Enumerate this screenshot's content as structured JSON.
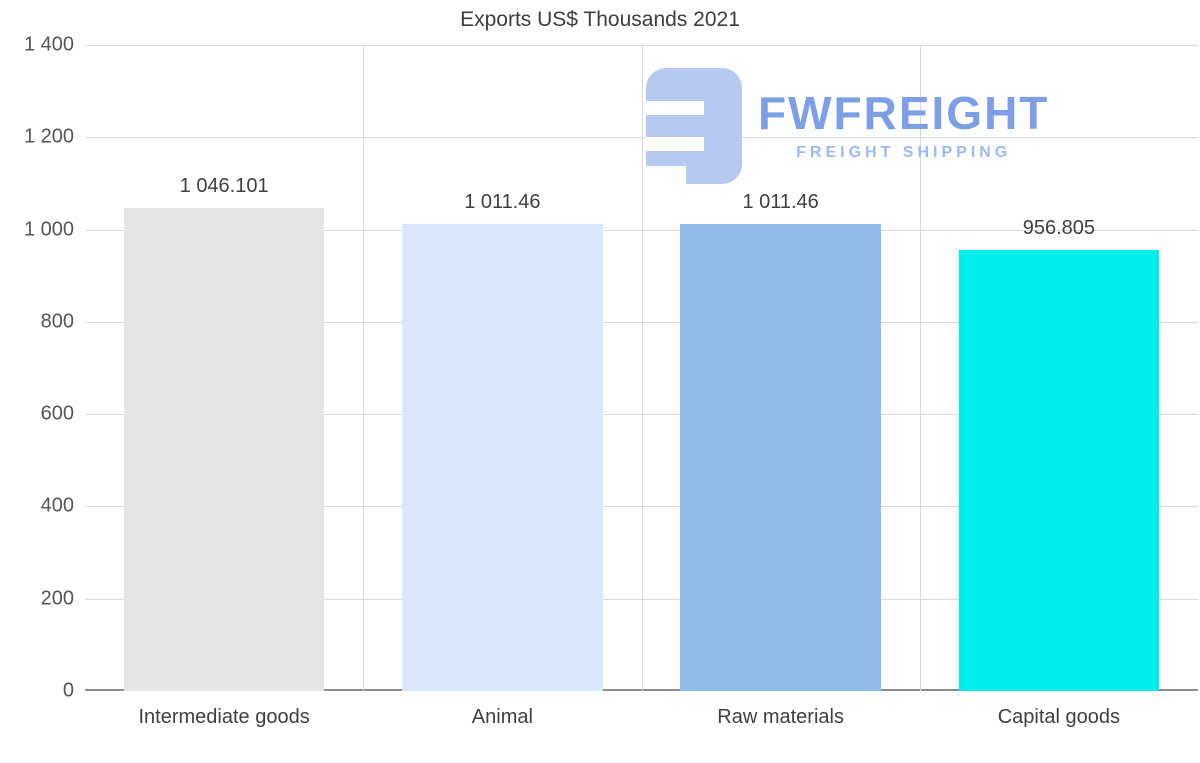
{
  "title": "Exports US$ Thousands 2021",
  "watermark": {
    "brand": "FWFREIGHT",
    "tagline": "FREIGHT SHIPPING",
    "brand_color": "#7d9fe6",
    "tagline_color": "#9cb9f0",
    "icon_color": "#b5c9f1"
  },
  "chart_data": {
    "type": "bar",
    "title": "Exports US$ Thousands 2021",
    "categories": [
      "Intermediate goods",
      "Animal",
      "Raw materials",
      "Capital goods"
    ],
    "values": [
      1046.101,
      1011.46,
      1011.46,
      956.805
    ],
    "value_labels": [
      "1 046.101",
      "1 011.46",
      "1 011.46",
      "956.805"
    ],
    "bar_colors": [
      "#e5e5e5",
      "#d9e9fb",
      "#8fbce8",
      "#00ebeb"
    ],
    "xlabel": "",
    "ylabel": "",
    "ylim": [
      0,
      1400
    ],
    "ytick_step": 200,
    "ytick_labels": [
      "0",
      "200",
      "400",
      "600",
      "800",
      "1 000",
      "1 200",
      "1 400"
    ],
    "grid": true,
    "legend": false
  }
}
